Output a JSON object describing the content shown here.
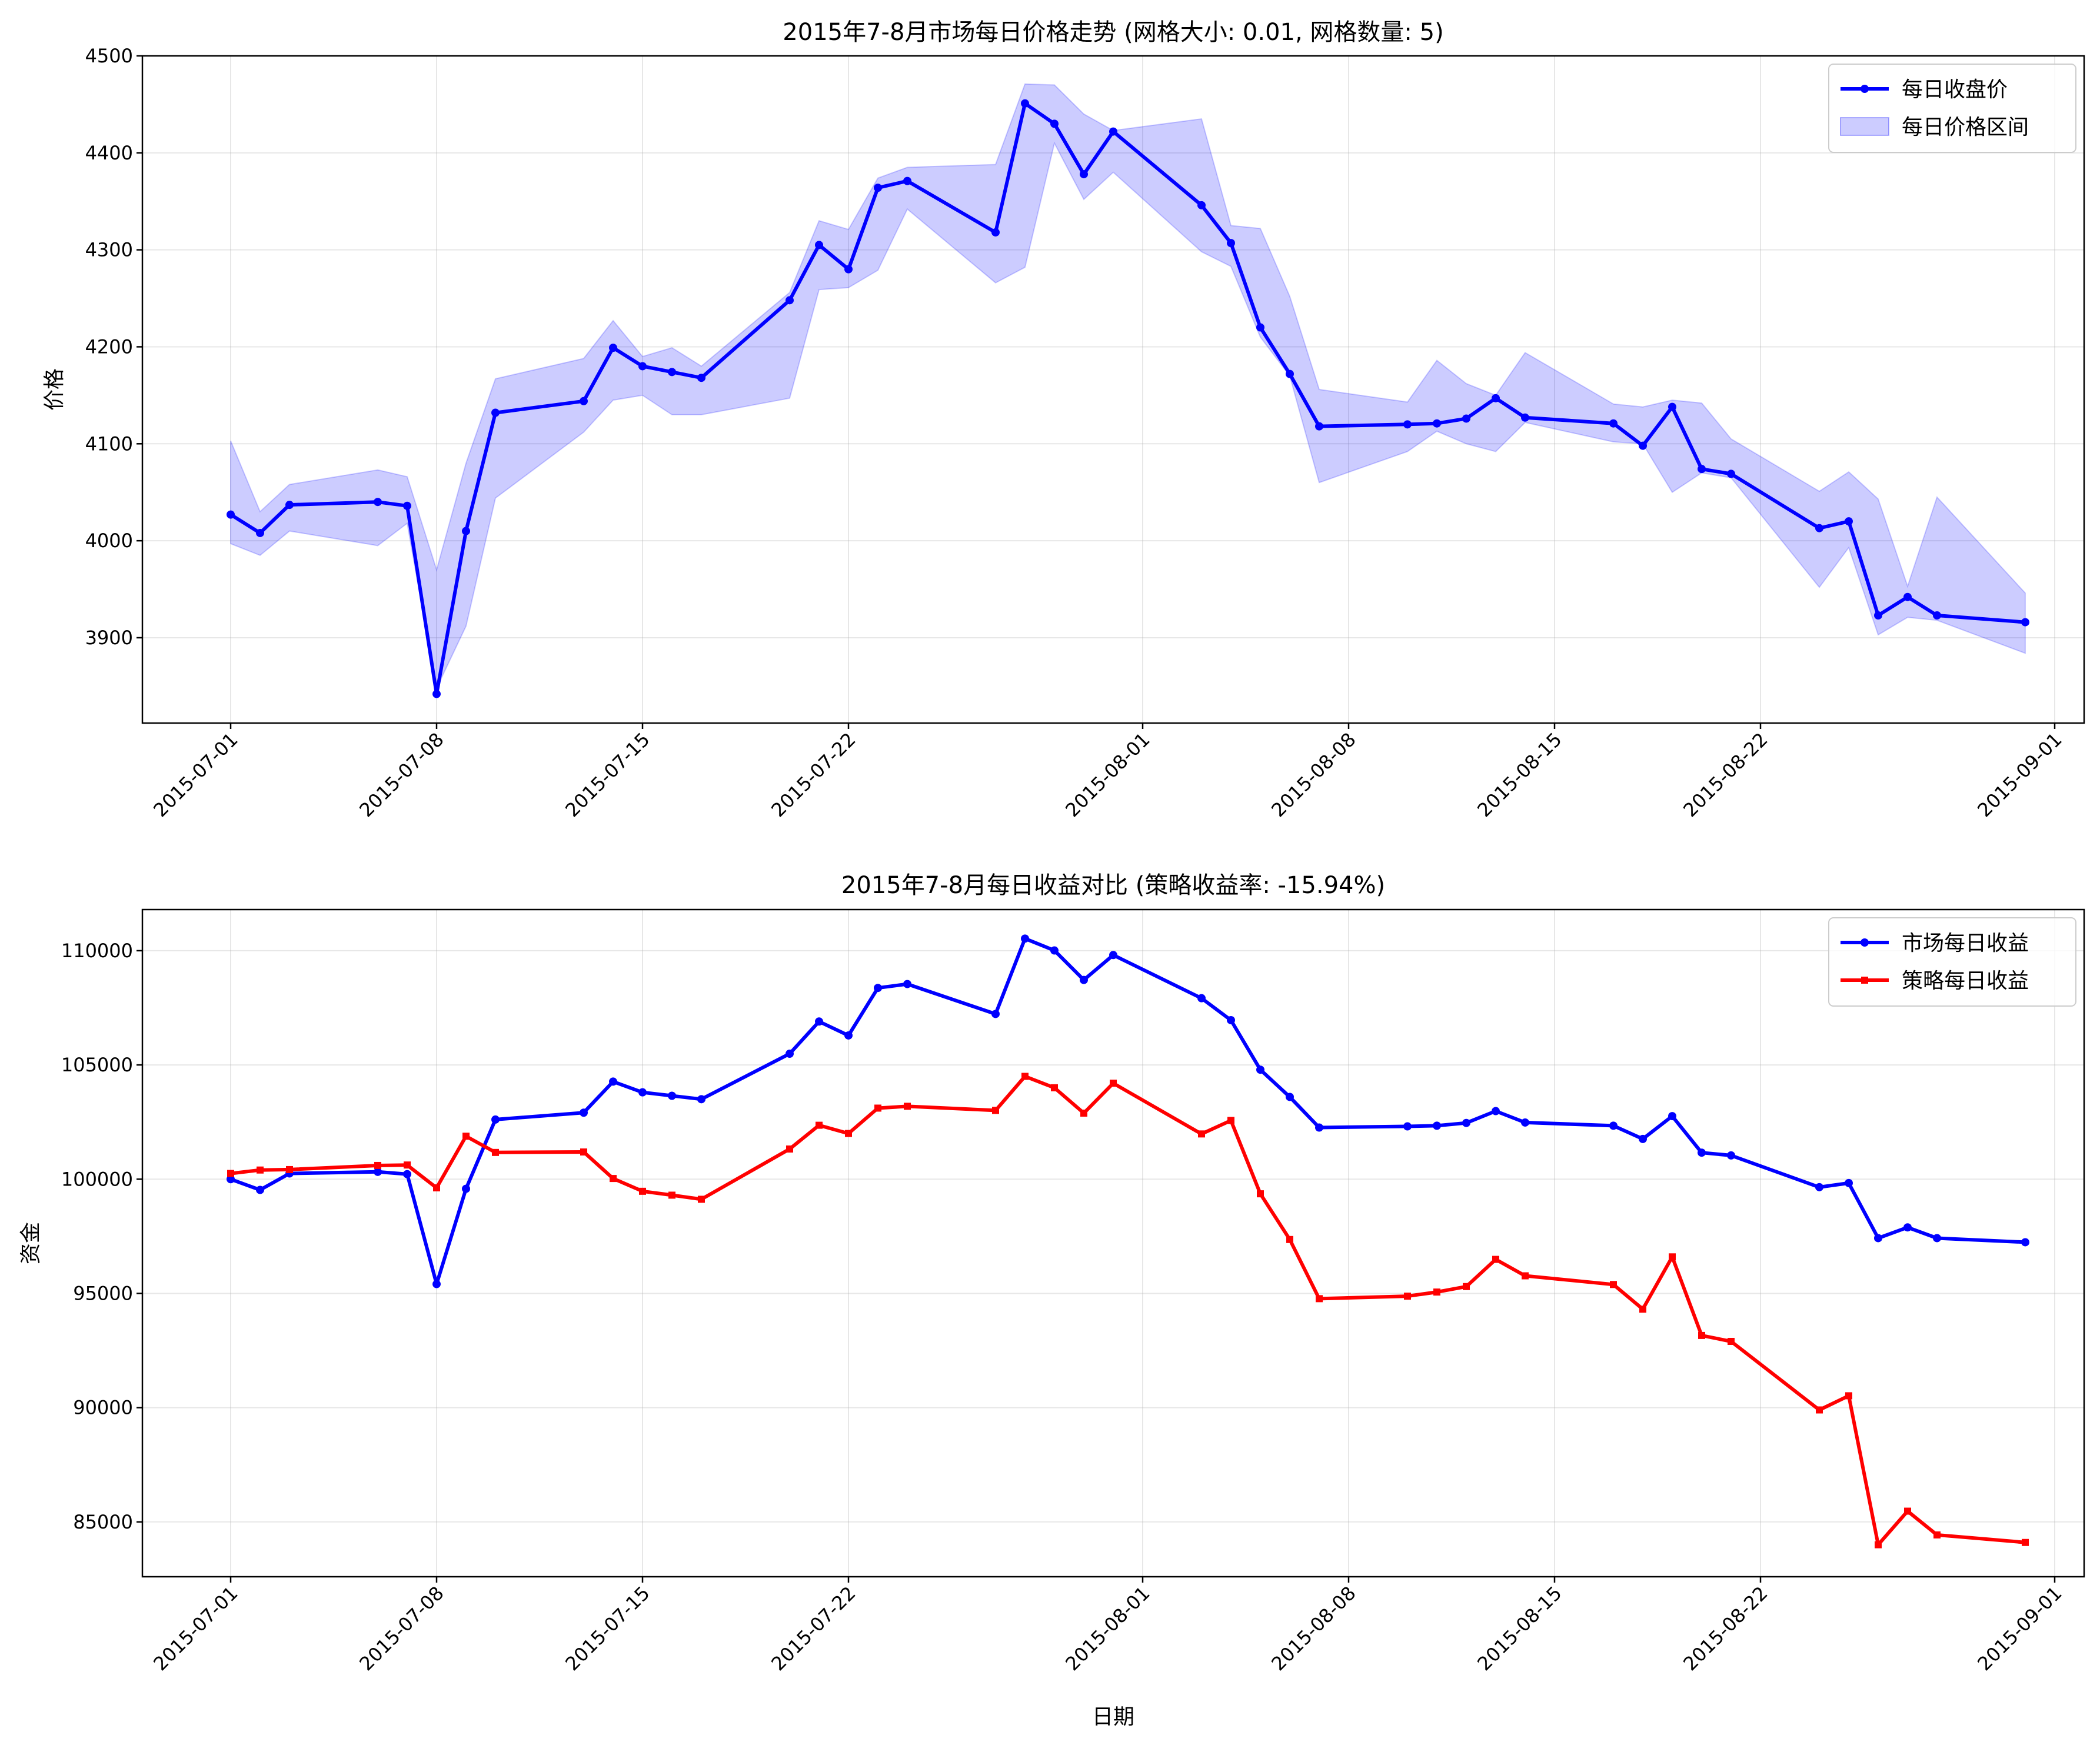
{
  "chart_data": [
    {
      "type": "line",
      "title": "2015年7-8月市场每日价格走势 (网格大小: 0.01, 网格数量: 5)",
      "xlabel": "",
      "ylabel": "价格",
      "xlim": [
        "2015-06-28",
        "2015-09-02"
      ],
      "ylim": [
        3812,
        4500
      ],
      "x_ticks": [
        "2015-07-01",
        "2015-07-08",
        "2015-07-15",
        "2015-07-22",
        "2015-08-01",
        "2015-08-08",
        "2015-08-15",
        "2015-08-22",
        "2015-09-01"
      ],
      "y_ticks": [
        3900,
        4000,
        4100,
        4200,
        4300,
        4400,
        4500
      ],
      "grid": true,
      "legend_position": "top-right",
      "x": [
        "2015-07-01",
        "2015-07-02",
        "2015-07-03",
        "2015-07-06",
        "2015-07-07",
        "2015-07-08",
        "2015-07-09",
        "2015-07-10",
        "2015-07-13",
        "2015-07-14",
        "2015-07-15",
        "2015-07-16",
        "2015-07-17",
        "2015-07-20",
        "2015-07-21",
        "2015-07-22",
        "2015-07-23",
        "2015-07-24",
        "2015-07-27",
        "2015-07-28",
        "2015-07-29",
        "2015-07-30",
        "2015-07-31",
        "2015-08-03",
        "2015-08-04",
        "2015-08-05",
        "2015-08-06",
        "2015-08-07",
        "2015-08-10",
        "2015-08-11",
        "2015-08-12",
        "2015-08-13",
        "2015-08-14",
        "2015-08-17",
        "2015-08-18",
        "2015-08-19",
        "2015-08-20",
        "2015-08-21",
        "2015-08-24",
        "2015-08-25",
        "2015-08-26",
        "2015-08-27",
        "2015-08-28",
        "2015-08-31"
      ],
      "series": [
        {
          "name": "每日收盘价",
          "kind": "line",
          "color": "#0000ff",
          "values": [
            4027,
            4008,
            4037,
            4040,
            4036,
            3842,
            4010,
            4132,
            4144,
            4199,
            4180,
            4174,
            4168,
            4248,
            4305,
            4280,
            4364,
            4371,
            4318,
            4451,
            4430,
            4378,
            4422,
            4346,
            4307,
            4220,
            4172,
            4118,
            4120,
            4121,
            4126,
            4147,
            4127,
            4121,
            4098,
            4138,
            4074,
            4069,
            4013,
            4020,
            3923,
            3942,
            3923,
            3916
          ]
        },
        {
          "name": "每日价格区间",
          "kind": "band",
          "color": "#0000ff",
          "low": [
            3997,
            3985,
            4010,
            3995,
            4018,
            3848,
            3912,
            4044,
            4112,
            4145,
            4150,
            4130,
            4130,
            4147,
            4259,
            4261,
            4279,
            4342,
            4266,
            4282,
            4410,
            4352,
            4380,
            4298,
            4283,
            4210,
            4170,
            4060,
            4092,
            4113,
            4100,
            4092,
            4122,
            4102,
            4100,
            4050,
            4070,
            4065,
            3952,
            3993,
            3903,
            3921,
            3918,
            3884
          ],
          "high": [
            4103,
            4030,
            4058,
            4073,
            4066,
            3970,
            4080,
            4167,
            4188,
            4227,
            4190,
            4199,
            4180,
            4256,
            4330,
            4321,
            4374,
            4385,
            4388,
            4471,
            4470,
            4440,
            4423,
            4435,
            4325,
            4322,
            4252,
            4156,
            4143,
            4186,
            4162,
            4150,
            4194,
            4141,
            4138,
            4145,
            4142,
            4105,
            4051,
            4071,
            4043,
            3953,
            4045,
            3946
          ]
        }
      ]
    },
    {
      "type": "line",
      "title": "2015年7-8月每日收益对比 (策略收益率: -15.94%)",
      "xlabel": "日期",
      "ylabel": "资金",
      "xlim": [
        "2015-06-28",
        "2015-09-02"
      ],
      "ylim": [
        82600,
        111800
      ],
      "x_ticks": [
        "2015-07-01",
        "2015-07-08",
        "2015-07-15",
        "2015-07-22",
        "2015-08-01",
        "2015-08-08",
        "2015-08-15",
        "2015-08-22",
        "2015-09-01"
      ],
      "y_ticks": [
        85000,
        90000,
        95000,
        100000,
        105000,
        110000
      ],
      "grid": true,
      "legend_position": "top-right",
      "x": [
        "2015-07-01",
        "2015-07-02",
        "2015-07-03",
        "2015-07-06",
        "2015-07-07",
        "2015-07-08",
        "2015-07-09",
        "2015-07-10",
        "2015-07-13",
        "2015-07-14",
        "2015-07-15",
        "2015-07-16",
        "2015-07-17",
        "2015-07-20",
        "2015-07-21",
        "2015-07-22",
        "2015-07-23",
        "2015-07-24",
        "2015-07-27",
        "2015-07-28",
        "2015-07-29",
        "2015-07-30",
        "2015-07-31",
        "2015-08-03",
        "2015-08-04",
        "2015-08-05",
        "2015-08-06",
        "2015-08-07",
        "2015-08-10",
        "2015-08-11",
        "2015-08-12",
        "2015-08-13",
        "2015-08-14",
        "2015-08-17",
        "2015-08-18",
        "2015-08-19",
        "2015-08-20",
        "2015-08-21",
        "2015-08-24",
        "2015-08-25",
        "2015-08-26",
        "2015-08-27",
        "2015-08-28",
        "2015-08-31"
      ],
      "series": [
        {
          "name": "市场每日收益",
          "kind": "line",
          "marker": "circle",
          "color": "#0000ff",
          "values": [
            100000,
            99530,
            100250,
            100320,
            100220,
            95410,
            99580,
            102610,
            102910,
            104270,
            103800,
            103650,
            103500,
            105490,
            106900,
            106290,
            108370,
            108540,
            107230,
            110530,
            110010,
            108720,
            109810,
            107920,
            106960,
            104790,
            103600,
            102260,
            102310,
            102340,
            102460,
            102980,
            102480,
            102340,
            101760,
            102760,
            101160,
            101040,
            99650,
            99830,
            97420,
            97890,
            97420,
            97240
          ]
        },
        {
          "name": "策略每日收益",
          "kind": "line",
          "marker": "square",
          "color": "#ff0000",
          "values": [
            100250,
            100400,
            100420,
            100600,
            100620,
            99620,
            101880,
            101170,
            101190,
            100030,
            99470,
            99300,
            99120,
            101320,
            102360,
            102000,
            103110,
            103190,
            103010,
            104500,
            104000,
            102890,
            104200,
            101980,
            102570,
            99360,
            97360,
            94770,
            94880,
            95060,
            95300,
            96490,
            95770,
            95390,
            94310,
            96600,
            93160,
            92900,
            89900,
            90520,
            84000,
            85470,
            84430,
            84100
          ]
        }
      ]
    }
  ]
}
